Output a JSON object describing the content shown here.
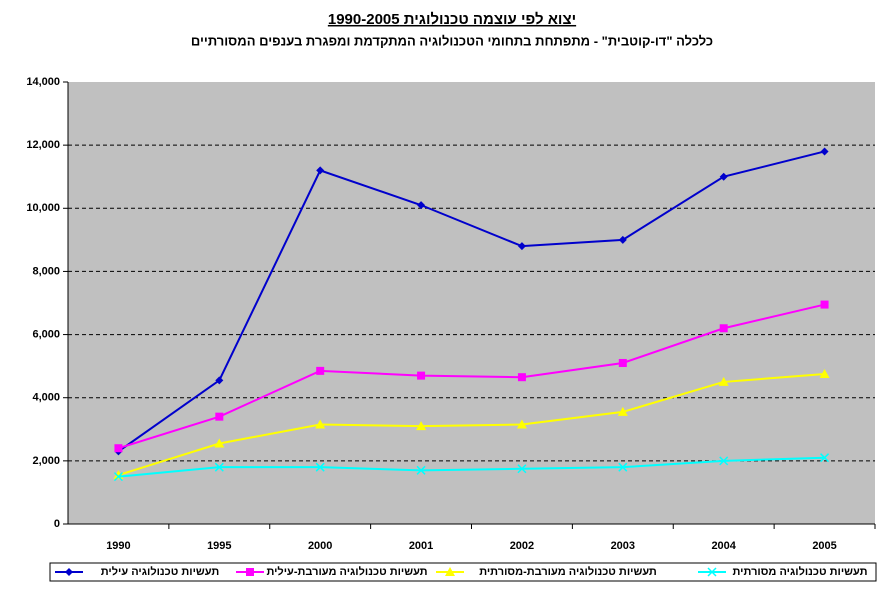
{
  "chart_data": {
    "type": "line",
    "title": "יצוא לפי עוצמה טכנולוגית 1990-2005",
    "subtitle": "כלכלה \"דו-קוטבית\" - מתפתחת בתחומי הטכנולוגיה המתקדמת ומפגרת בענפים המסורתיים",
    "categories": [
      "1990",
      "1995",
      "2000",
      "2001",
      "2002",
      "2003",
      "2004",
      "2005"
    ],
    "series": [
      {
        "name": "תעשיות טכנולוגיה עילית",
        "color": "#0000cc",
        "marker": "diamond",
        "values": [
          2300,
          4550,
          11200,
          10100,
          8800,
          9000,
          11000,
          11800
        ]
      },
      {
        "name": "תעשיות טכנולוגיה מעורבת-עילית",
        "color": "#ff00ff",
        "marker": "square",
        "values": [
          2400,
          3400,
          4850,
          4700,
          4650,
          5100,
          6200,
          6950
        ]
      },
      {
        "name": "תעשיות טכנולוגיה מעורבת-מסורתית",
        "color": "#ffff00",
        "marker": "triangle",
        "values": [
          1550,
          2550,
          3150,
          3100,
          3150,
          3550,
          4500,
          4750
        ]
      },
      {
        "name": "תעשיות טכנולוגיה מסורתית",
        "color": "#00ffff",
        "marker": "x",
        "values": [
          1500,
          1800,
          1800,
          1700,
          1750,
          1800,
          2000,
          2100
        ]
      }
    ],
    "ylim": [
      0,
      14000
    ],
    "yticks": [
      0,
      {
        "value": 2000,
        "label": "2,000"
      },
      {
        "value": 4000,
        "label": "4,000"
      },
      {
        "value": 6000,
        "label": "6,000"
      },
      {
        "value": 8000,
        "label": "8,000"
      },
      {
        "value": 10000,
        "label": "10,000"
      },
      {
        "value": 12000,
        "label": "12,000"
      },
      {
        "value": 14000,
        "label": "14,000"
      }
    ],
    "grid": true,
    "plot_background": "#c0c0c0",
    "legend": "bottom"
  }
}
